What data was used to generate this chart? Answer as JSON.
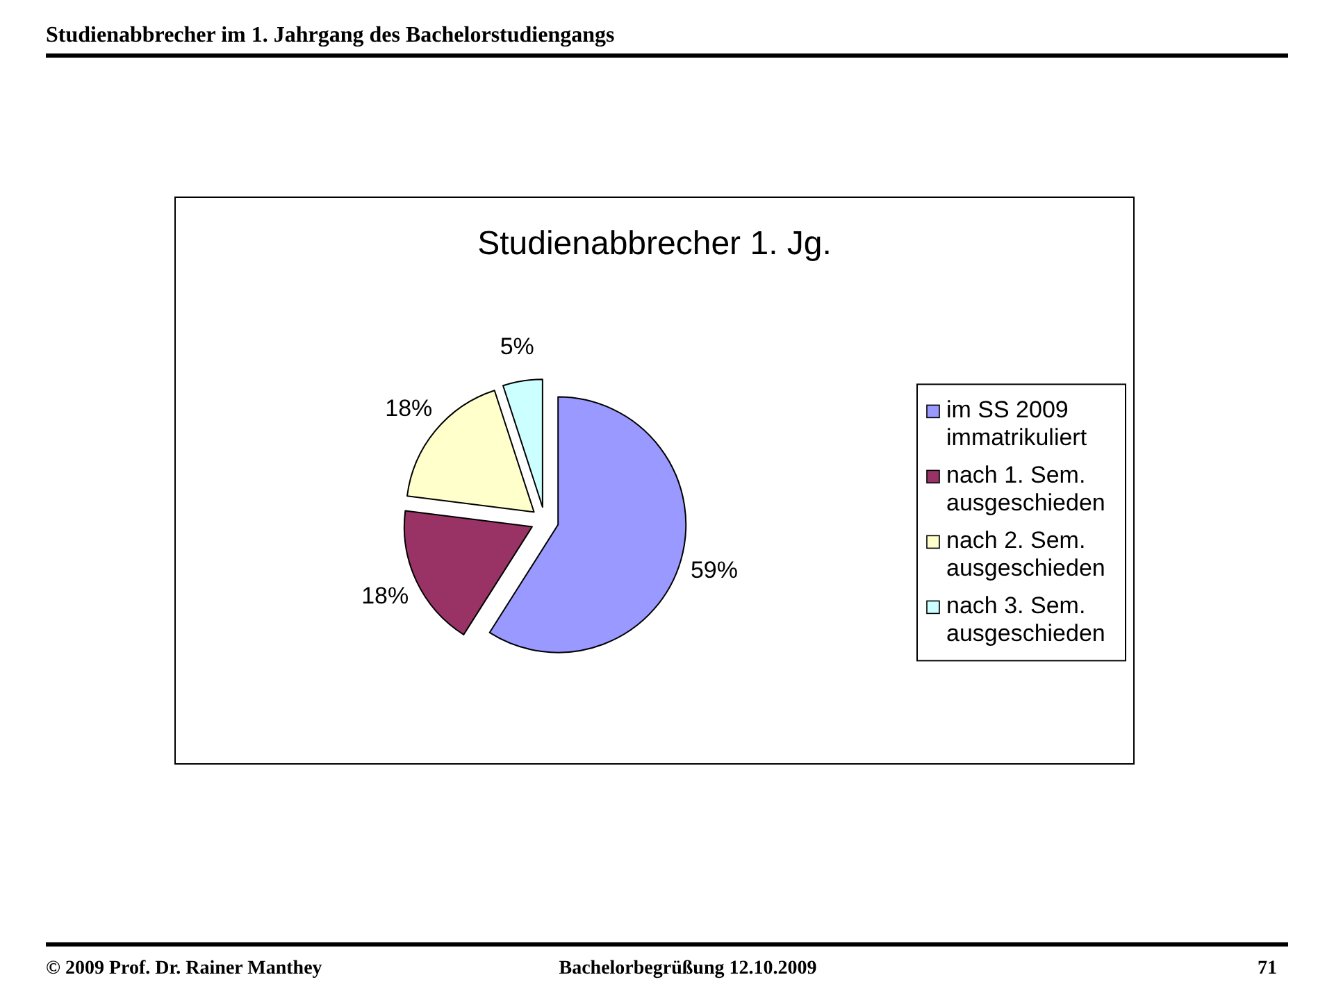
{
  "chart_data": {
    "type": "pie",
    "title": "Studienabbrecher 1. Jg.",
    "categories": [
      "im SS 2009 immatrikuliert",
      "nach 1. Sem. ausgeschieden",
      "nach 2. Sem. ausgeschieden",
      "nach 3. Sem. ausgeschieden"
    ],
    "values": [
      59,
      18,
      18,
      5
    ],
    "colors": [
      "#9999ff",
      "#993366",
      "#ffffcc",
      "#ccffff"
    ],
    "value_labels": [
      "59%",
      "18%",
      "18%",
      "5%"
    ],
    "legend": "right",
    "annotations": [
      "Studienabbrecher im 1. Jahrgang des Bachelorstudiengangs",
      "© 2009 Prof. Dr. Rainer Manthey",
      "Bachelorbegrüßung 12.10.2009",
      "71"
    ]
  }
}
